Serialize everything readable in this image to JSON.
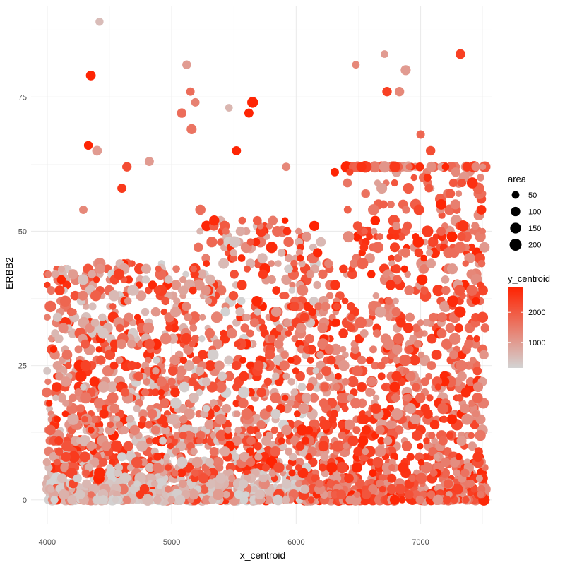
{
  "chart_data": {
    "type": "scatter",
    "title": "",
    "xlabel": "x_centroid",
    "ylabel": "ERBB2",
    "xlim": [
      3870,
      7570
    ],
    "ylim": [
      -4.5,
      92
    ],
    "x_ticks": [
      4000,
      5000,
      6000,
      7000
    ],
    "y_ticks": [
      0,
      25,
      50,
      75
    ],
    "x_tick_labels": [
      "4000",
      "5000",
      "6000",
      "7000"
    ],
    "y_tick_labels": [
      "0",
      "25",
      "50",
      "75"
    ],
    "grid": true,
    "legend_position": "right",
    "size_legend": {
      "title": "area",
      "breaks": [
        50,
        100,
        150,
        200
      ],
      "labels": [
        "50",
        "100",
        "150",
        "200"
      ]
    },
    "color_legend": {
      "title": "y_centroid",
      "low_color": "#d3d3d3",
      "high_color": "#ff2200",
      "range": [
        150,
        2850
      ],
      "breaks": [
        1000,
        2000
      ],
      "labels": [
        "1000",
        "2000"
      ]
    },
    "point_count_estimate": 3200,
    "outliers": [
      {
        "x": 4420,
        "y": 89,
        "area": 60,
        "y_centroid": 500
      },
      {
        "x": 4350,
        "y": 79,
        "area": 110,
        "y_centroid": 2800
      },
      {
        "x": 5120,
        "y": 81,
        "area": 80,
        "y_centroid": 1000
      },
      {
        "x": 5650,
        "y": 74,
        "area": 150,
        "y_centroid": 2800
      },
      {
        "x": 5620,
        "y": 72,
        "area": 90,
        "y_centroid": 2800
      },
      {
        "x": 5460,
        "y": 73,
        "area": 50,
        "y_centroid": 600
      },
      {
        "x": 5080,
        "y": 72,
        "area": 100,
        "y_centroid": 1700
      },
      {
        "x": 5150,
        "y": 76,
        "area": 70,
        "y_centroid": 1700
      },
      {
        "x": 5190,
        "y": 74,
        "area": 70,
        "y_centroid": 1400
      },
      {
        "x": 6480,
        "y": 81,
        "area": 50,
        "y_centroid": 1300
      },
      {
        "x": 6710,
        "y": 83,
        "area": 50,
        "y_centroid": 1000
      },
      {
        "x": 6880,
        "y": 80,
        "area": 120,
        "y_centroid": 1000
      },
      {
        "x": 7320,
        "y": 83,
        "area": 110,
        "y_centroid": 2400
      },
      {
        "x": 6730,
        "y": 76,
        "area": 100,
        "y_centroid": 2400
      },
      {
        "x": 6830,
        "y": 76,
        "area": 100,
        "y_centroid": 1300
      },
      {
        "x": 4330,
        "y": 66,
        "area": 80,
        "y_centroid": 2800
      },
      {
        "x": 4400,
        "y": 65,
        "area": 110,
        "y_centroid": 1000
      },
      {
        "x": 5520,
        "y": 65,
        "area": 90,
        "y_centroid": 2800
      },
      {
        "x": 5160,
        "y": 69,
        "area": 120,
        "y_centroid": 1600
      },
      {
        "x": 4640,
        "y": 62,
        "area": 100,
        "y_centroid": 2200
      },
      {
        "x": 4600,
        "y": 58,
        "area": 90,
        "y_centroid": 2500
      },
      {
        "x": 4820,
        "y": 63,
        "area": 90,
        "y_centroid": 1000
      },
      {
        "x": 5920,
        "y": 62,
        "area": 70,
        "y_centroid": 1300
      },
      {
        "x": 6310,
        "y": 61,
        "area": 70,
        "y_centroid": 2800
      },
      {
        "x": 7000,
        "y": 68,
        "area": 70,
        "y_centroid": 1800
      },
      {
        "x": 7080,
        "y": 65,
        "area": 100,
        "y_centroid": 2200
      },
      {
        "x": 5230,
        "y": 54,
        "area": 130,
        "y_centroid": 1700
      },
      {
        "x": 4290,
        "y": 54,
        "area": 70,
        "y_centroid": 1300
      }
    ]
  }
}
